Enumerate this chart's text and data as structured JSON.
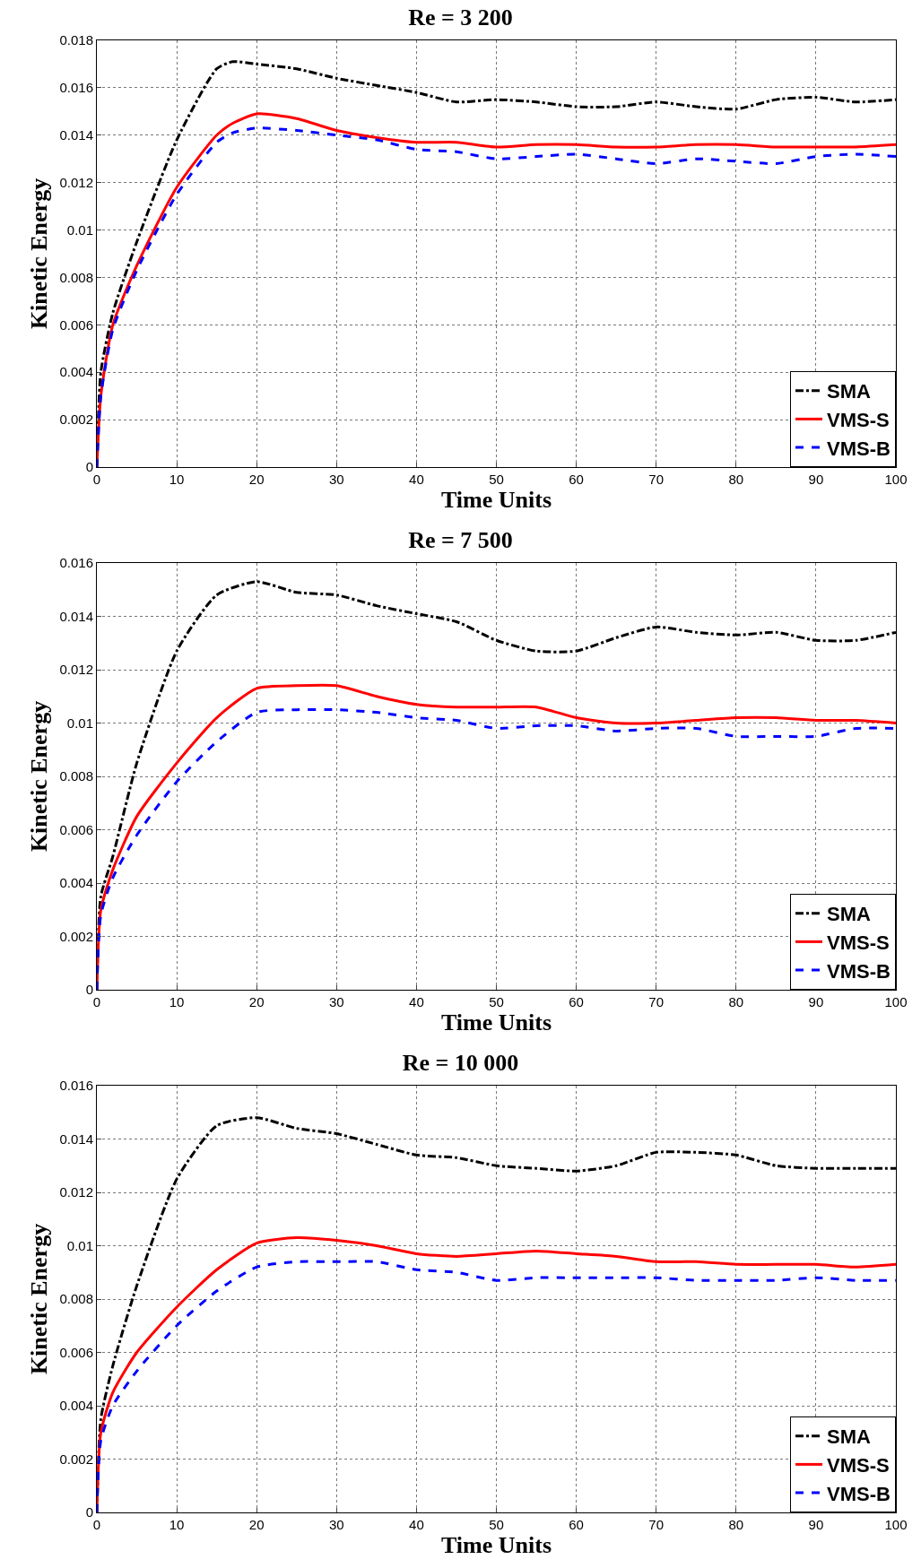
{
  "chart_data": [
    {
      "type": "line",
      "title": "Re = 3 200",
      "xlabel": "Time Units",
      "ylabel": "Kinetic Energy",
      "xlim": [
        0,
        100
      ],
      "xticks": [
        0,
        10,
        20,
        30,
        40,
        50,
        60,
        70,
        80,
        90,
        100
      ],
      "ylim": [
        0,
        0.018
      ],
      "yticks": [
        0,
        0.002,
        0.004,
        0.006,
        0.008,
        0.01,
        0.012,
        0.014,
        0.016,
        0.018
      ],
      "grid": true,
      "legend": "bottom right",
      "marker": "none",
      "x": [
        0,
        0.5,
        2,
        5,
        10,
        15,
        17,
        20,
        25,
        30,
        35,
        40,
        45,
        50,
        55,
        60,
        65,
        70,
        75,
        80,
        85,
        90,
        95,
        100
      ],
      "series": [
        {
          "name": "SMA",
          "color": "#000000",
          "line_style": "dashdot",
          "values": [
            0,
            0.004,
            0.0065,
            0.0095,
            0.0138,
            0.0168,
            0.0171,
            0.017,
            0.0168,
            0.0164,
            0.0161,
            0.0158,
            0.0154,
            0.0155,
            0.0154,
            0.0152,
            0.0152,
            0.0154,
            0.0152,
            0.0151,
            0.0155,
            0.0156,
            0.0154,
            0.0155
          ]
        },
        {
          "name": "VMS-S",
          "color": "#ff0000",
          "line_style": "solid",
          "values": [
            0,
            0.003,
            0.006,
            0.0085,
            0.0118,
            0.014,
            0.0145,
            0.0149,
            0.0147,
            0.0142,
            0.0139,
            0.0137,
            0.0137,
            0.0135,
            0.0136,
            0.0136,
            0.0135,
            0.0135,
            0.0136,
            0.0136,
            0.0135,
            0.0135,
            0.0135,
            0.0136
          ]
        },
        {
          "name": "VMS-B",
          "color": "#0000ff",
          "line_style": "dashed",
          "values": [
            0,
            0.003,
            0.0058,
            0.0083,
            0.0115,
            0.0137,
            0.0141,
            0.0143,
            0.0142,
            0.014,
            0.0138,
            0.0134,
            0.0133,
            0.013,
            0.0131,
            0.0132,
            0.013,
            0.0128,
            0.013,
            0.0129,
            0.0128,
            0.0131,
            0.0132,
            0.0131
          ]
        }
      ]
    },
    {
      "type": "line",
      "title": "Re = 7 500",
      "xlabel": "Time Units",
      "ylabel": "Kinetic Energy",
      "xlim": [
        0,
        100
      ],
      "xticks": [
        0,
        10,
        20,
        30,
        40,
        50,
        60,
        70,
        80,
        90,
        100
      ],
      "ylim": [
        0,
        0.016
      ],
      "yticks": [
        0,
        0.002,
        0.004,
        0.006,
        0.008,
        0.01,
        0.012,
        0.014,
        0.016
      ],
      "grid": true,
      "legend": "bottom right",
      "marker": "none",
      "x": [
        0,
        0.5,
        2,
        5,
        10,
        15,
        20,
        25,
        30,
        35,
        40,
        45,
        50,
        55,
        60,
        65,
        70,
        75,
        80,
        85,
        90,
        95,
        100
      ],
      "series": [
        {
          "name": "SMA",
          "color": "#000000",
          "line_style": "dashdot",
          "values": [
            0,
            0.0035,
            0.005,
            0.0085,
            0.0127,
            0.0148,
            0.0153,
            0.0149,
            0.0148,
            0.0144,
            0.0141,
            0.0138,
            0.0131,
            0.0127,
            0.0127,
            0.0132,
            0.0136,
            0.0134,
            0.0133,
            0.0134,
            0.0131,
            0.0131,
            0.0134
          ]
        },
        {
          "name": "VMS-S",
          "color": "#ff0000",
          "line_style": "solid",
          "values": [
            0,
            0.003,
            0.0045,
            0.0065,
            0.0085,
            0.0102,
            0.0113,
            0.0114,
            0.0114,
            0.011,
            0.0107,
            0.0106,
            0.0106,
            0.0106,
            0.0102,
            0.01,
            0.01,
            0.0101,
            0.0102,
            0.0102,
            0.0101,
            0.0101,
            0.01
          ]
        },
        {
          "name": "VMS-B",
          "color": "#0000ff",
          "line_style": "dashed",
          "values": [
            0,
            0.0028,
            0.0042,
            0.0058,
            0.0078,
            0.0093,
            0.0104,
            0.0105,
            0.0105,
            0.0104,
            0.0102,
            0.0101,
            0.0098,
            0.0099,
            0.0099,
            0.0097,
            0.0098,
            0.0098,
            0.0095,
            0.0095,
            0.0095,
            0.0098,
            0.0098
          ]
        }
      ]
    },
    {
      "type": "line",
      "title": "Re = 10 000",
      "xlabel": "Time Units",
      "ylabel": "Kinetic Energy",
      "xlim": [
        0,
        100
      ],
      "xticks": [
        0,
        10,
        20,
        30,
        40,
        50,
        60,
        70,
        80,
        90,
        100
      ],
      "ylim": [
        0,
        0.016
      ],
      "yticks": [
        0,
        0.002,
        0.004,
        0.006,
        0.008,
        0.01,
        0.012,
        0.014,
        0.016
      ],
      "grid": true,
      "legend": "bottom right",
      "marker": "none",
      "x": [
        0,
        0.5,
        2,
        5,
        10,
        15,
        20,
        25,
        30,
        35,
        40,
        45,
        50,
        55,
        60,
        65,
        70,
        75,
        80,
        85,
        90,
        95,
        100
      ],
      "series": [
        {
          "name": "SMA",
          "color": "#000000",
          "line_style": "dashdot",
          "values": [
            0,
            0.0035,
            0.0055,
            0.0085,
            0.0125,
            0.0145,
            0.0148,
            0.0144,
            0.0142,
            0.0138,
            0.0134,
            0.0133,
            0.013,
            0.0129,
            0.0128,
            0.013,
            0.0135,
            0.0135,
            0.0134,
            0.013,
            0.0129,
            0.0129,
            0.0129
          ]
        },
        {
          "name": "VMS-S",
          "color": "#ff0000",
          "line_style": "solid",
          "values": [
            0,
            0.003,
            0.0045,
            0.006,
            0.0077,
            0.0091,
            0.0101,
            0.0103,
            0.0102,
            0.01,
            0.0097,
            0.0096,
            0.0097,
            0.0098,
            0.0097,
            0.0096,
            0.0094,
            0.0094,
            0.0093,
            0.0093,
            0.0093,
            0.0092,
            0.0093
          ]
        },
        {
          "name": "VMS-B",
          "color": "#0000ff",
          "line_style": "dashed",
          "values": [
            0,
            0.0027,
            0.004,
            0.0053,
            0.007,
            0.0083,
            0.0092,
            0.0094,
            0.0094,
            0.0094,
            0.0091,
            0.009,
            0.0087,
            0.0088,
            0.0088,
            0.0088,
            0.0088,
            0.0087,
            0.0087,
            0.0087,
            0.0088,
            0.0087,
            0.0087
          ]
        }
      ]
    }
  ]
}
